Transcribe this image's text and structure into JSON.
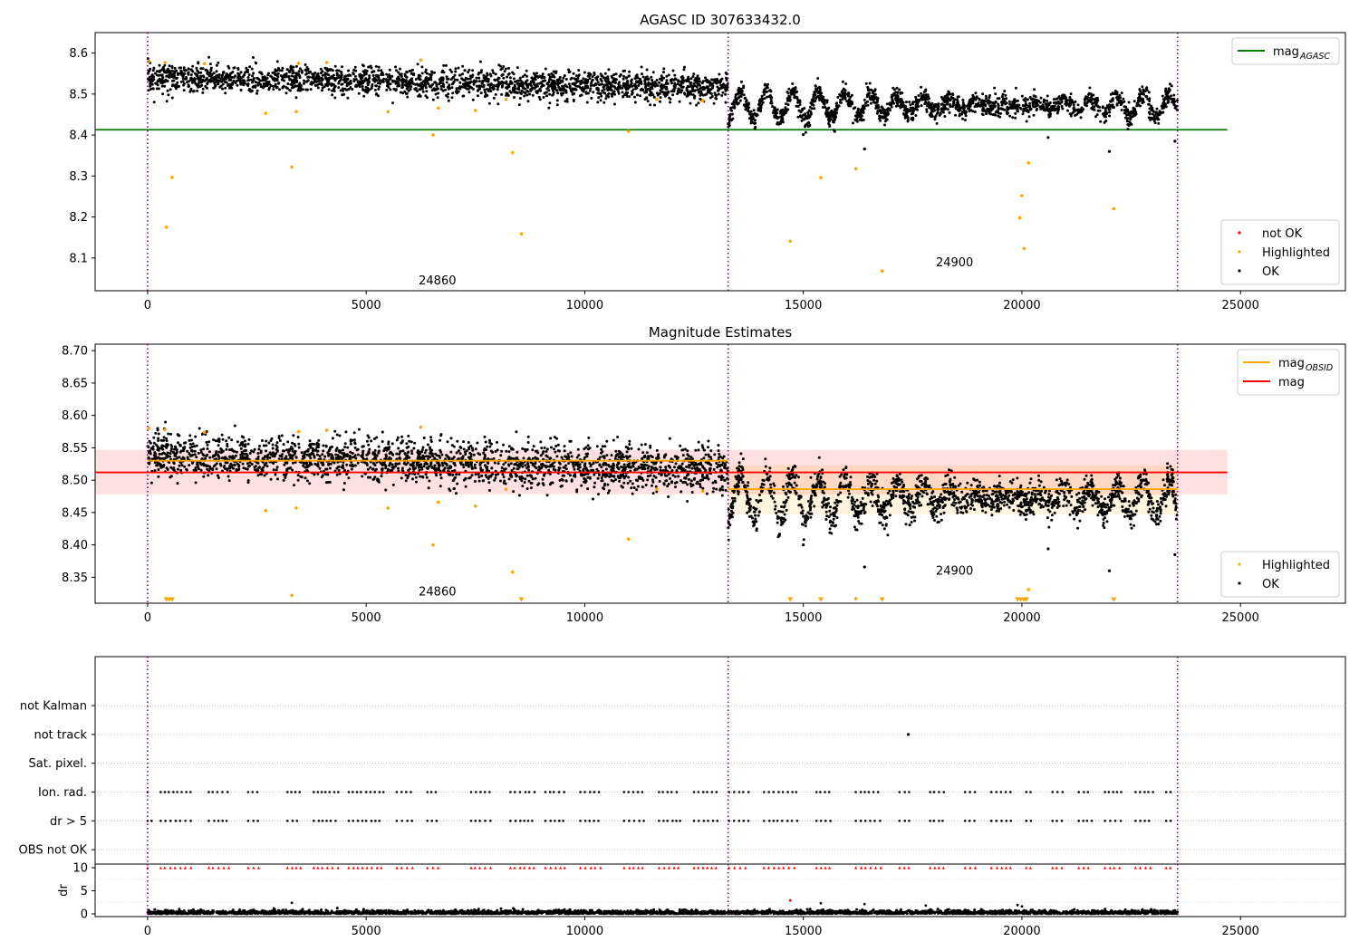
{
  "figure": {
    "title": "AGASC ID 307633432.0"
  },
  "chart_data": [
    {
      "type": "scatter",
      "title": "AGASC ID 307633432.0",
      "xlabel": "",
      "ylabel": "",
      "xlim": [
        -1200,
        27400
      ],
      "ylim": [
        8.02,
        8.65
      ],
      "xticks": [
        0,
        5000,
        10000,
        15000,
        20000,
        25000
      ],
      "yticks": [
        8.1,
        8.2,
        8.3,
        8.4,
        8.5,
        8.6
      ],
      "ytick_labels": [
        "8.1",
        "8.2",
        "8.3",
        "8.4",
        "8.5",
        "8.6"
      ],
      "obsid_boundaries": [
        0,
        13280,
        23560
      ],
      "obsid_labels": [
        {
          "text": "24860",
          "x": 6630,
          "y": 8.035
        },
        {
          "text": "24900",
          "x": 18460,
          "y": 8.08
        }
      ],
      "reference_lines": [
        {
          "name": "mag_AGASC",
          "y": 8.413,
          "x": [
            -1200,
            24700
          ],
          "color": "#008000"
        }
      ],
      "legends": [
        {
          "position": "upper-right",
          "entries": [
            {
              "label": "mag",
              "sub": "AGASC",
              "kind": "line",
              "color": "#008000"
            }
          ]
        },
        {
          "position": "lower-right",
          "entries": [
            {
              "label": "not OK",
              "kind": "dot",
              "color": "#ff0000"
            },
            {
              "label": "Highlighted",
              "kind": "dot",
              "color": "#ffa500"
            },
            {
              "label": "OK",
              "kind": "dot",
              "color": "#000000"
            }
          ]
        }
      ],
      "series": [
        {
          "name": "OK",
          "color": "#000000",
          "description": "dense mag time series",
          "segments": [
            {
              "x_range": [
                0,
                13280
              ],
              "baseline_start": 8.54,
              "baseline_end": 8.515,
              "noise": 0.017,
              "oscillation_amp": 0.0,
              "oscillation_period": 0
            },
            {
              "x_range": [
                13280,
                23560
              ],
              "baseline_start": 8.47,
              "baseline_end": 8.47,
              "noise": 0.012,
              "oscillation_amp": 0.04,
              "oscillation_period": 580
            }
          ],
          "outliers": [
            [
              15000,
              8.401
            ],
            [
              16400,
              8.366
            ],
            [
              20600,
              8.394
            ],
            [
              22000,
              8.36
            ],
            [
              23500,
              8.385
            ]
          ]
        },
        {
          "name": "Highlighted",
          "color": "#ffa500",
          "points": [
            [
              30,
              8.58
            ],
            [
              400,
              8.577
            ],
            [
              430,
              8.175
            ],
            [
              560,
              8.297
            ],
            [
              1300,
              8.574
            ],
            [
              2700,
              8.453
            ],
            [
              3300,
              8.322
            ],
            [
              3400,
              8.457
            ],
            [
              3450,
              8.575
            ],
            [
              4100,
              8.577
            ],
            [
              5500,
              8.457
            ],
            [
              6250,
              8.583
            ],
            [
              6530,
              8.4
            ],
            [
              6650,
              8.466
            ],
            [
              7500,
              8.46
            ],
            [
              8200,
              8.487
            ],
            [
              8350,
              8.357
            ],
            [
              8550,
              8.159
            ],
            [
              11000,
              8.409
            ],
            [
              11650,
              8.487
            ],
            [
              12700,
              8.484
            ],
            [
              14700,
              8.141
            ],
            [
              15400,
              8.296
            ],
            [
              16200,
              8.318
            ],
            [
              16800,
              8.068
            ],
            [
              19950,
              8.198
            ],
            [
              20000,
              8.252
            ],
            [
              20050,
              8.123
            ],
            [
              20150,
              8.332
            ],
            [
              22100,
              8.22
            ]
          ]
        }
      ]
    },
    {
      "type": "scatter",
      "title": "Magnitude Estimates",
      "xlabel": "",
      "ylabel": "",
      "xlim": [
        -1200,
        27400
      ],
      "ylim": [
        8.31,
        8.71
      ],
      "xticks": [
        0,
        5000,
        10000,
        15000,
        20000,
        25000
      ],
      "yticks": [
        8.35,
        8.4,
        8.45,
        8.5,
        8.55,
        8.6,
        8.65,
        8.7
      ],
      "ytick_labels": [
        "8.35",
        "8.40",
        "8.45",
        "8.50",
        "8.55",
        "8.60",
        "8.65",
        "8.70"
      ],
      "obsid_boundaries": [
        0,
        13280,
        23560
      ],
      "obsid_labels": [
        {
          "text": "24860",
          "x": 6630,
          "y": 8.322
        },
        {
          "text": "24900",
          "x": 18460,
          "y": 8.354
        }
      ],
      "bands": [
        {
          "y": [
            8.478,
            8.547
          ],
          "x": [
            -1200,
            24700
          ],
          "color": "#ff0000",
          "opacity": 0.12
        },
        {
          "y": [
            8.447,
            8.523
          ],
          "x": [
            13280,
            23560
          ],
          "color": "#ffa500",
          "opacity": 0.12
        }
      ],
      "reference_lines": [
        {
          "name": "mag",
          "y": 8.512,
          "x": [
            -1200,
            24700
          ],
          "color": "#ff0000"
        },
        {
          "name": "mag_OBSID",
          "y": 8.53,
          "x": [
            0,
            13280
          ],
          "color": "#ffa500"
        },
        {
          "name": "mag_OBSID",
          "y": 8.486,
          "x": [
            13280,
            23560
          ],
          "color": "#ffa500"
        }
      ],
      "legends": [
        {
          "position": "upper-right",
          "entries": [
            {
              "label": "mag",
              "sub": "OBSID",
              "kind": "line",
              "color": "#ffa500"
            },
            {
              "label": "mag",
              "kind": "line",
              "color": "#ff0000"
            }
          ]
        },
        {
          "position": "lower-right",
          "entries": [
            {
              "label": "Highlighted",
              "kind": "dot",
              "color": "#ffa500"
            },
            {
              "label": "OK",
              "kind": "dot",
              "color": "#000000"
            }
          ]
        }
      ],
      "series": [
        {
          "name": "OK",
          "color": "#000000",
          "description": "dense mag time series",
          "segments": [
            {
              "x_range": [
                0,
                13280
              ],
              "baseline_start": 8.54,
              "baseline_end": 8.515,
              "noise": 0.017,
              "oscillation_amp": 0.0,
              "oscillation_period": 0
            },
            {
              "x_range": [
                13280,
                23560
              ],
              "baseline_start": 8.47,
              "baseline_end": 8.47,
              "noise": 0.012,
              "oscillation_amp": 0.04,
              "oscillation_period": 580
            }
          ],
          "outliers": [
            [
              15000,
              8.4
            ],
            [
              16400,
              8.366
            ],
            [
              20600,
              8.394
            ],
            [
              22000,
              8.36
            ],
            [
              23500,
              8.385
            ]
          ]
        },
        {
          "name": "Highlighted",
          "color": "#ffa500",
          "points": [
            [
              30,
              8.58
            ],
            [
              400,
              8.578
            ],
            [
              1300,
              8.574
            ],
            [
              2700,
              8.453
            ],
            [
              3300,
              8.322
            ],
            [
              3400,
              8.457
            ],
            [
              3450,
              8.575
            ],
            [
              4100,
              8.577
            ],
            [
              5500,
              8.457
            ],
            [
              6250,
              8.582
            ],
            [
              6530,
              8.4
            ],
            [
              6650,
              8.466
            ],
            [
              7500,
              8.46
            ],
            [
              8200,
              8.486
            ],
            [
              8350,
              8.358
            ],
            [
              11000,
              8.409
            ],
            [
              11650,
              8.486
            ],
            [
              12700,
              8.483
            ],
            [
              16200,
              8.317
            ],
            [
              20150,
              8.331
            ]
          ],
          "below_axis_markers": [
            430,
            490,
            560,
            8550,
            14700,
            15400,
            16800,
            19900,
            19980,
            20050,
            20100,
            22100
          ]
        }
      ]
    },
    {
      "type": "scatter",
      "title": "",
      "xlabel": "",
      "ylabel": "",
      "xlim": [
        -1200,
        27400
      ],
      "ylim": [
        -0.5,
        6.7
      ],
      "flag_rows": [
        "OBS not OK",
        "dr > 5",
        "Ion. rad.",
        "Sat. pixel.",
        "not track",
        "not Kalman"
      ],
      "obsid_boundaries": [
        0,
        13280,
        23560
      ],
      "flags": {
        "dr_gt_5_and_ion_rad": {
          "color": "#000000",
          "x_ranges": [
            [
              0,
              100
            ],
            [
              300,
              1000
            ],
            [
              1400,
              1900
            ],
            [
              2300,
              2600
            ],
            [
              3200,
              3500
            ],
            [
              3800,
              4400
            ],
            [
              4600,
              5400
            ],
            [
              5700,
              6100
            ],
            [
              6400,
              6700
            ],
            [
              7400,
              7900
            ],
            [
              8300,
              8900
            ],
            [
              9100,
              9600
            ],
            [
              9900,
              10400
            ],
            [
              10900,
              11400
            ],
            [
              11700,
              12200
            ],
            [
              12500,
              13100
            ],
            [
              13300,
              13800
            ],
            [
              14100,
              14900
            ],
            [
              15300,
              15700
            ],
            [
              16200,
              16800
            ],
            [
              17200,
              17500
            ],
            [
              17900,
              18300
            ],
            [
              18700,
              19000
            ],
            [
              19300,
              19800
            ],
            [
              20100,
              20300
            ],
            [
              20700,
              21000
            ],
            [
              21300,
              21600
            ],
            [
              21900,
              22300
            ],
            [
              22600,
              23000
            ],
            [
              23300,
              23500
            ]
          ]
        },
        "not_track_points": [
          [
            17400,
            4
          ]
        ]
      }
    },
    {
      "type": "scatter",
      "title": "",
      "xlabel": "",
      "ylabel": "dr",
      "xlim": [
        -1200,
        27400
      ],
      "ylim": [
        -0.6,
        10.8
      ],
      "xticks": [
        0,
        5000,
        10000,
        15000,
        20000,
        25000
      ],
      "yticks": [
        0,
        5,
        10
      ],
      "ytick_labels": [
        "0",
        "5",
        "10"
      ],
      "obsid_boundaries": [
        0,
        13280,
        23560
      ],
      "series": [
        {
          "name": "dr",
          "color": "#000000",
          "description": "dense near-zero values",
          "y_range": [
            0,
            1.2
          ]
        },
        {
          "name": "dr clipped",
          "color": "#ff0000",
          "marker": "triangle-up",
          "y": 10
        },
        {
          "name": "dr outliers",
          "color": "#000000",
          "points": [
            [
              3300,
              2.4
            ],
            [
              14700,
              2.9
            ],
            [
              15400,
              2.3
            ],
            [
              16400,
              2.1
            ],
            [
              17800,
              1.8
            ],
            [
              19900,
              1.9
            ],
            [
              20000,
              1.6
            ]
          ]
        }
      ]
    }
  ]
}
